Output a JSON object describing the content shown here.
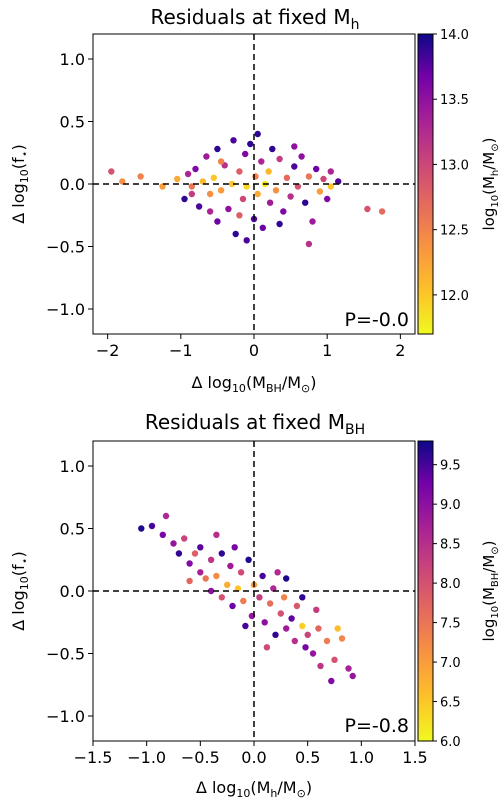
{
  "chart_data": [
    {
      "type": "scatter",
      "title": "Residuals at fixed M",
      "title_sub": "h",
      "xlabel": {
        "prefix": "Δ log",
        "sub1": "10",
        "mid": "(M",
        "sub2": "BH",
        "mid2": "/M",
        "sub3": "⊙",
        "suffix": ")"
      },
      "ylabel": {
        "prefix": "Δ log",
        "sub1": "10",
        "mid": "(f",
        "sub2": "⋆",
        "suffix": ")"
      },
      "xlim": [
        -2.2,
        2.2
      ],
      "ylim": [
        -1.2,
        1.2
      ],
      "xticks": [
        -2,
        -1,
        0,
        1,
        2
      ],
      "xtick_labels": [
        "−2",
        "−1",
        "0",
        "1",
        "2"
      ],
      "yticks": [
        -1.0,
        -0.5,
        0.0,
        0.5,
        1.0
      ],
      "ytick_labels": [
        "−1.0",
        "−0.5",
        "0.0",
        "0.5",
        "1.0"
      ],
      "annotation": "P=-0.0",
      "colorbar": {
        "label": {
          "prefix": "log",
          "sub1": "10",
          "mid": "(M",
          "sub2": "h",
          "mid2": "/M",
          "sub3": "⊙",
          "suffix": ")"
        },
        "range": [
          11.7,
          14.0
        ],
        "ticks": [
          12.0,
          12.5,
          13.0,
          13.5,
          14.0
        ],
        "tick_labels": [
          "12.0",
          "12.5",
          "13.0",
          "13.5",
          "14.0"
        ],
        "colormap": "plasma"
      },
      "points": [
        {
          "x": -1.95,
          "y": 0.1,
          "c": 12.9
        },
        {
          "x": -1.8,
          "y": 0.02,
          "c": 12.4
        },
        {
          "x": -1.55,
          "y": 0.06,
          "c": 12.5
        },
        {
          "x": -1.25,
          "y": -0.02,
          "c": 12.3
        },
        {
          "x": -1.05,
          "y": 0.04,
          "c": 12.2
        },
        {
          "x": -0.95,
          "y": -0.12,
          "c": 13.9
        },
        {
          "x": -0.9,
          "y": 0.08,
          "c": 13.3
        },
        {
          "x": -0.85,
          "y": -0.02,
          "c": 12.6
        },
        {
          "x": -0.8,
          "y": 0.12,
          "c": 13.6
        },
        {
          "x": -0.75,
          "y": -0.18,
          "c": 13.8
        },
        {
          "x": -0.7,
          "y": 0.02,
          "c": 12.1
        },
        {
          "x": -0.65,
          "y": 0.22,
          "c": 13.4
        },
        {
          "x": -0.6,
          "y": -0.08,
          "c": 12.4
        },
        {
          "x": -0.55,
          "y": 0.05,
          "c": 12.0
        },
        {
          "x": -0.5,
          "y": 0.28,
          "c": 13.9
        },
        {
          "x": -0.5,
          "y": -0.3,
          "c": 13.7
        },
        {
          "x": -0.45,
          "y": -0.05,
          "c": 12.3
        },
        {
          "x": -0.4,
          "y": 0.15,
          "c": 13.2
        },
        {
          "x": -0.35,
          "y": -0.2,
          "c": 13.5
        },
        {
          "x": -0.3,
          "y": 0.0,
          "c": 12.0
        },
        {
          "x": -0.28,
          "y": 0.35,
          "c": 13.8
        },
        {
          "x": -0.25,
          "y": -0.4,
          "c": 13.9
        },
        {
          "x": -0.2,
          "y": 0.1,
          "c": 12.8
        },
        {
          "x": -0.15,
          "y": -0.12,
          "c": 13.0
        },
        {
          "x": -0.12,
          "y": 0.24,
          "c": 13.6
        },
        {
          "x": -0.1,
          "y": -0.02,
          "c": 11.9
        },
        {
          "x": -0.05,
          "y": 0.32,
          "c": 13.9
        },
        {
          "x": 0.0,
          "y": -0.28,
          "c": 13.8
        },
        {
          "x": 0.02,
          "y": 0.06,
          "c": 12.5
        },
        {
          "x": 0.05,
          "y": -0.08,
          "c": 12.2
        },
        {
          "x": 0.1,
          "y": 0.18,
          "c": 13.3
        },
        {
          "x": 0.12,
          "y": -0.35,
          "c": 13.7
        },
        {
          "x": 0.15,
          "y": 0.0,
          "c": 11.8
        },
        {
          "x": 0.2,
          "y": 0.1,
          "c": 12.1
        },
        {
          "x": 0.22,
          "y": -0.15,
          "c": 13.4
        },
        {
          "x": 0.25,
          "y": 0.28,
          "c": 13.9
        },
        {
          "x": 0.3,
          "y": -0.05,
          "c": 12.4
        },
        {
          "x": 0.35,
          "y": 0.2,
          "c": 13.1
        },
        {
          "x": 0.4,
          "y": -0.22,
          "c": 13.6
        },
        {
          "x": 0.45,
          "y": 0.05,
          "c": 12.7
        },
        {
          "x": 0.5,
          "y": -0.1,
          "c": 13.2
        },
        {
          "x": 0.55,
          "y": 0.14,
          "c": 13.8
        },
        {
          "x": 0.6,
          "y": -0.02,
          "c": 12.9
        },
        {
          "x": 0.65,
          "y": 0.22,
          "c": 13.5
        },
        {
          "x": 0.7,
          "y": -0.15,
          "c": 13.9
        },
        {
          "x": 0.75,
          "y": 0.06,
          "c": 12.6
        },
        {
          "x": 0.8,
          "y": -0.3,
          "c": 13.4
        },
        {
          "x": 0.85,
          "y": 0.12,
          "c": 13.7
        },
        {
          "x": 0.9,
          "y": -0.06,
          "c": 12.3
        },
        {
          "x": 0.95,
          "y": 0.04,
          "c": 13.0
        },
        {
          "x": 1.0,
          "y": -0.12,
          "c": 13.6
        },
        {
          "x": 1.05,
          "y": 0.1,
          "c": 13.3
        },
        {
          "x": 1.05,
          "y": -0.02,
          "c": 12.0
        },
        {
          "x": 1.15,
          "y": 0.02,
          "c": 13.8
        },
        {
          "x": 1.55,
          "y": -0.2,
          "c": 12.9
        },
        {
          "x": 1.75,
          "y": -0.22,
          "c": 12.7
        },
        {
          "x": 0.75,
          "y": -0.48,
          "c": 13.2
        },
        {
          "x": -0.85,
          "y": -0.08,
          "c": 13.1
        },
        {
          "x": -0.45,
          "y": 0.18,
          "c": 12.5
        },
        {
          "x": 0.35,
          "y": -0.32,
          "c": 13.9
        },
        {
          "x": -0.2,
          "y": -0.25,
          "c": 12.8
        },
        {
          "x": 0.55,
          "y": 0.3,
          "c": 13.5
        },
        {
          "x": -0.6,
          "y": -0.22,
          "c": 13.3
        },
        {
          "x": 0.05,
          "y": 0.4,
          "c": 13.9
        },
        {
          "x": -0.1,
          "y": -0.45,
          "c": 13.8
        }
      ]
    },
    {
      "type": "scatter",
      "title": "Residuals at fixed M",
      "title_sub": "BH",
      "xlabel": {
        "prefix": "Δ log",
        "sub1": "10",
        "mid": "(M",
        "sub2": "h",
        "mid2": "/M",
        "sub3": "⊙",
        "suffix": ")"
      },
      "ylabel": {
        "prefix": "Δ log",
        "sub1": "10",
        "mid": "(f",
        "sub2": "⋆",
        "suffix": ")"
      },
      "xlim": [
        -1.5,
        1.5
      ],
      "ylim": [
        -1.2,
        1.2
      ],
      "xticks": [
        -1.5,
        -1.0,
        -0.5,
        0.0,
        0.5,
        1.0,
        1.5
      ],
      "xtick_labels": [
        "−1.5",
        "−1.0",
        "−0.5",
        "0.0",
        "0.5",
        "1.0",
        "1.5"
      ],
      "yticks": [
        -1.0,
        -0.5,
        0.0,
        0.5,
        1.0
      ],
      "ytick_labels": [
        "−1.0",
        "−0.5",
        "0.0",
        "0.5",
        "1.0"
      ],
      "annotation": "P=-0.8",
      "colorbar": {
        "label": {
          "prefix": "log",
          "sub1": "10",
          "mid": "(M",
          "sub2": "BH",
          "mid2": "/M",
          "sub3": "⊙",
          "suffix": ")"
        },
        "range": [
          6.0,
          9.8
        ],
        "ticks": [
          6.0,
          6.5,
          7.0,
          7.5,
          8.0,
          8.5,
          9.0,
          9.5
        ],
        "tick_labels": [
          "6.0",
          "6.5",
          "7.0",
          "7.5",
          "8.0",
          "8.5",
          "9.0",
          "9.5"
        ],
        "colormap": "plasma"
      },
      "points": [
        {
          "x": -1.05,
          "y": 0.5,
          "c": 9.7
        },
        {
          "x": -0.95,
          "y": 0.52,
          "c": 9.5
        },
        {
          "x": -0.82,
          "y": 0.6,
          "c": 8.6
        },
        {
          "x": -0.85,
          "y": 0.45,
          "c": 9.2
        },
        {
          "x": -0.75,
          "y": 0.38,
          "c": 8.9
        },
        {
          "x": -0.7,
          "y": 0.3,
          "c": 9.6
        },
        {
          "x": -0.65,
          "y": 0.42,
          "c": 8.2
        },
        {
          "x": -0.6,
          "y": 0.22,
          "c": 9.1
        },
        {
          "x": -0.55,
          "y": 0.3,
          "c": 7.8
        },
        {
          "x": -0.5,
          "y": 0.15,
          "c": 8.7
        },
        {
          "x": -0.5,
          "y": 0.35,
          "c": 9.4
        },
        {
          "x": -0.45,
          "y": 0.1,
          "c": 7.5
        },
        {
          "x": -0.4,
          "y": 0.25,
          "c": 8.4
        },
        {
          "x": -0.4,
          "y": 0.0,
          "c": 9.0
        },
        {
          "x": -0.35,
          "y": 0.12,
          "c": 7.2
        },
        {
          "x": -0.3,
          "y": 0.3,
          "c": 9.6
        },
        {
          "x": -0.3,
          "y": -0.05,
          "c": 8.0
        },
        {
          "x": -0.25,
          "y": 0.05,
          "c": 6.8
        },
        {
          "x": -0.22,
          "y": 0.2,
          "c": 8.8
        },
        {
          "x": -0.2,
          "y": -0.12,
          "c": 9.3
        },
        {
          "x": -0.15,
          "y": 0.02,
          "c": 6.5
        },
        {
          "x": -0.12,
          "y": 0.15,
          "c": 8.1
        },
        {
          "x": -0.1,
          "y": -0.08,
          "c": 7.4
        },
        {
          "x": -0.05,
          "y": 0.25,
          "c": 9.7
        },
        {
          "x": -0.02,
          "y": -0.2,
          "c": 8.9
        },
        {
          "x": 0.0,
          "y": 0.05,
          "c": 7.0
        },
        {
          "x": 0.05,
          "y": -0.05,
          "c": 8.3
        },
        {
          "x": 0.08,
          "y": 0.12,
          "c": 9.5
        },
        {
          "x": 0.1,
          "y": -0.25,
          "c": 9.0
        },
        {
          "x": 0.15,
          "y": -0.1,
          "c": 7.6
        },
        {
          "x": 0.18,
          "y": 0.02,
          "c": 8.6
        },
        {
          "x": 0.2,
          "y": -0.35,
          "c": 9.6
        },
        {
          "x": 0.25,
          "y": -0.18,
          "c": 8.0
        },
        {
          "x": 0.28,
          "y": -0.05,
          "c": 7.3
        },
        {
          "x": 0.3,
          "y": -0.3,
          "c": 8.8
        },
        {
          "x": 0.35,
          "y": -0.22,
          "c": 9.4
        },
        {
          "x": 0.38,
          "y": -0.4,
          "c": 8.5
        },
        {
          "x": 0.4,
          "y": -0.12,
          "c": 7.9
        },
        {
          "x": 0.45,
          "y": -0.28,
          "c": 6.4
        },
        {
          "x": 0.48,
          "y": -0.45,
          "c": 9.2
        },
        {
          "x": 0.5,
          "y": -0.35,
          "c": 8.2
        },
        {
          "x": 0.55,
          "y": -0.5,
          "c": 8.9
        },
        {
          "x": 0.6,
          "y": -0.3,
          "c": 7.7
        },
        {
          "x": 0.62,
          "y": -0.6,
          "c": 8.4
        },
        {
          "x": 0.68,
          "y": -0.4,
          "c": 7.4
        },
        {
          "x": 0.72,
          "y": -0.72,
          "c": 9.1
        },
        {
          "x": 0.75,
          "y": -0.55,
          "c": 8.0
        },
        {
          "x": 0.78,
          "y": -0.3,
          "c": 6.6
        },
        {
          "x": 0.82,
          "y": -0.38,
          "c": 7.3
        },
        {
          "x": 0.88,
          "y": -0.62,
          "c": 8.7
        },
        {
          "x": 0.92,
          "y": -0.68,
          "c": 8.9
        },
        {
          "x": 0.45,
          "y": -0.05,
          "c": 9.6
        },
        {
          "x": -0.35,
          "y": 0.45,
          "c": 8.5
        },
        {
          "x": 0.3,
          "y": 0.1,
          "c": 9.7
        },
        {
          "x": -0.18,
          "y": 0.35,
          "c": 9.2
        },
        {
          "x": 0.12,
          "y": -0.45,
          "c": 8.1
        },
        {
          "x": -0.6,
          "y": 0.08,
          "c": 7.7
        },
        {
          "x": 0.22,
          "y": 0.15,
          "c": 8.6
        },
        {
          "x": -0.08,
          "y": -0.28,
          "c": 9.5
        },
        {
          "x": 0.58,
          "y": -0.15,
          "c": 8.3
        }
      ]
    }
  ]
}
